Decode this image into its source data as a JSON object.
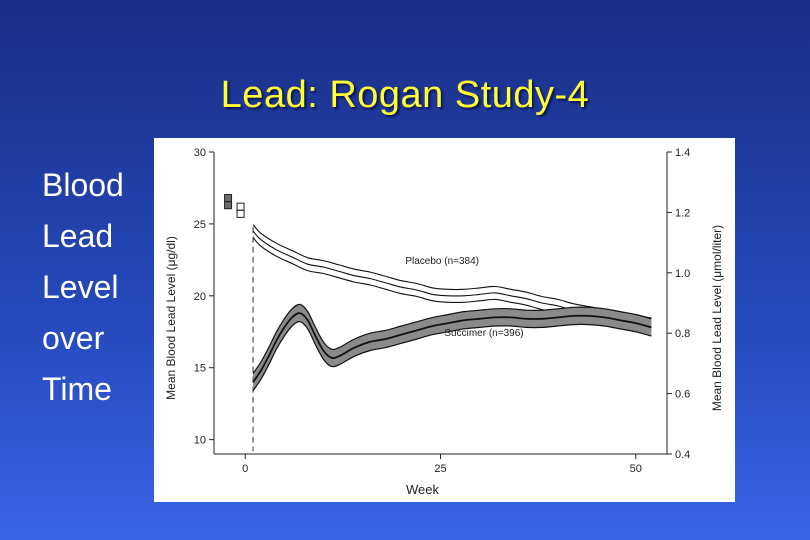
{
  "slide": {
    "title": "Lead:  Rogan Study-4",
    "bullets": [
      "Blood",
      "Lead",
      "Level",
      "over",
      "Time"
    ]
  },
  "colors": {
    "background_top": "#1a2f86",
    "background_bottom": "#3a63e6",
    "title": "#ffff33",
    "succimer_band": "#8a8a8a"
  },
  "chart_data": {
    "type": "line",
    "title": "",
    "xlabel": "Week",
    "ylabel": "Mean Blood Lead Level (μg/dl)",
    "y2label": "Mean Blood Lead Level (μmol/liter)",
    "xlim": [
      -4,
      54
    ],
    "ylim": [
      9,
      30
    ],
    "y2lim": [
      0.4,
      1.4
    ],
    "xticks": [
      0,
      25,
      50
    ],
    "yticks": [
      10,
      15,
      20,
      25,
      30
    ],
    "y2ticks": [
      0.4,
      0.6,
      0.8,
      1.0,
      1.2,
      1.4
    ],
    "y2tick_labels": [
      "0.4",
      "0.6",
      "0.8",
      "1.0",
      "1.2",
      "1.4"
    ],
    "grid": false,
    "baseline_markers": [
      {
        "name": "Succimer",
        "x": -2.2,
        "values": [
          26.8,
          26.3
        ],
        "filled": true
      },
      {
        "name": "Placebo",
        "x": -0.6,
        "values": [
          26.2,
          25.7
        ],
        "filled": false
      }
    ],
    "treatment_start_week": 1,
    "series": [
      {
        "name": "Placebo (n=384)",
        "x": [
          1,
          2,
          4,
          6,
          8,
          10,
          12,
          14,
          16,
          18,
          20,
          22,
          24,
          26,
          28,
          30,
          32,
          34,
          36,
          38,
          40,
          42,
          44,
          46,
          48,
          50,
          52
        ],
        "values": [
          24.5,
          23.9,
          23.2,
          22.7,
          22.2,
          22.0,
          21.7,
          21.4,
          21.2,
          20.9,
          20.6,
          20.4,
          20.1,
          20.0,
          20.0,
          20.1,
          20.2,
          20.0,
          19.8,
          19.5,
          19.3,
          19.0,
          18.8,
          18.6,
          18.4,
          18.2,
          18.0
        ],
        "band": 0.45,
        "label_at": {
          "x": 20.5,
          "y": 22.2
        }
      },
      {
        "name": "Succimer (n=396)",
        "x": [
          1,
          2,
          3,
          4,
          5,
          6,
          7,
          8,
          9,
          10,
          11,
          12,
          14,
          16,
          18,
          20,
          22,
          24,
          26,
          28,
          30,
          32,
          34,
          36,
          38,
          40,
          42,
          44,
          46,
          48,
          50,
          52
        ],
        "values": [
          14.0,
          14.8,
          15.8,
          16.9,
          17.8,
          18.5,
          18.8,
          18.3,
          17.2,
          16.2,
          15.7,
          15.8,
          16.4,
          16.8,
          17.0,
          17.3,
          17.6,
          17.9,
          18.1,
          18.3,
          18.4,
          18.5,
          18.5,
          18.4,
          18.4,
          18.5,
          18.6,
          18.6,
          18.5,
          18.3,
          18.1,
          17.8
        ],
        "band": 0.6,
        "label_at": {
          "x": 25.5,
          "y": 17.2
        }
      }
    ]
  }
}
